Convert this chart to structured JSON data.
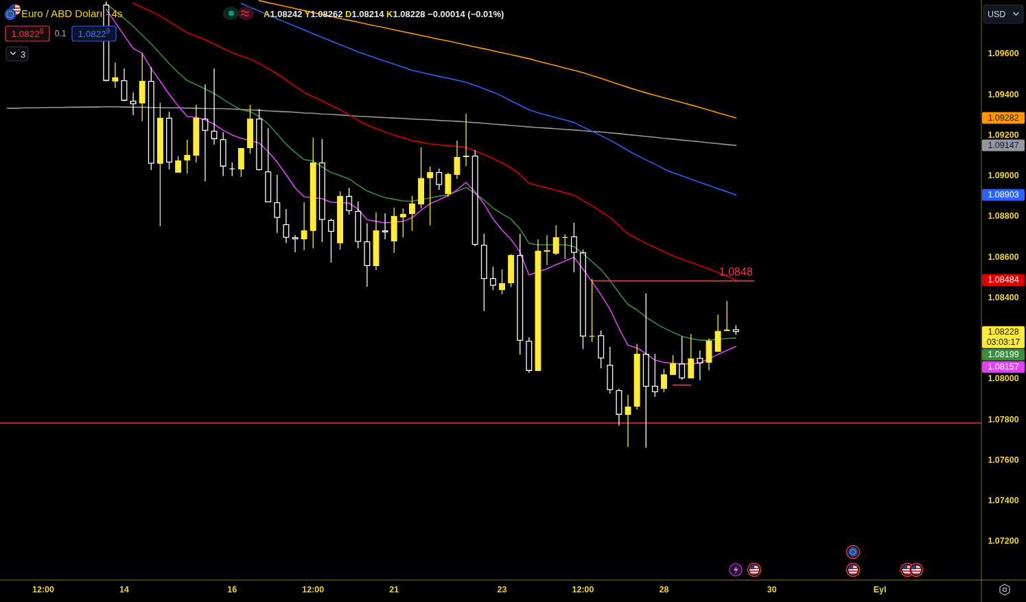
{
  "chart_data": {
    "type": "candlestick",
    "title": "Euro / ABD Doları · 4s",
    "subtitle": "A1.08242 Y1.08262 D1.08214 K1.08228 −0.00014 (−0.01%)",
    "categories": [
      null,
      null,
      null,
      null,
      "12:00",
      null,
      null,
      null,
      null,
      null,
      null,
      null,
      null,
      "14",
      null,
      null,
      null,
      null,
      null,
      null,
      null,
      null,
      null,
      null,
      null,
      "16",
      null,
      null,
      null,
      null,
      null,
      null,
      null,
      null,
      "12:00",
      null,
      null,
      null,
      null,
      null,
      null,
      null,
      null,
      "21",
      null,
      null,
      null,
      null,
      null,
      null,
      null,
      null,
      null,
      null,
      null,
      "23",
      null,
      null,
      null,
      null,
      null,
      null,
      null,
      null,
      "12:00",
      null,
      null,
      null,
      null,
      null,
      null,
      null,
      null,
      "28",
      null,
      null,
      null,
      null,
      null,
      null,
      null,
      null,
      null,
      null,
      null,
      "30",
      null,
      null,
      null,
      null,
      null,
      null,
      null,
      null,
      null,
      null,
      null,
      "Eyl"
    ],
    "ylim": [
      1.07007,
      1.09863
    ],
    "yticks": [
      {
        "value": 1.072,
        "label": "1.07200"
      },
      {
        "value": 1.074,
        "label": "1.07400"
      },
      {
        "value": 1.076,
        "label": "1.07600"
      },
      {
        "value": 1.078,
        "label": "1.07800"
      },
      {
        "value": 1.08,
        "label": "1.08000"
      },
      {
        "value": 1.084,
        "label": "1.08400"
      },
      {
        "value": 1.086,
        "label": "1.08600"
      },
      {
        "value": 1.088,
        "label": "1.08800"
      },
      {
        "value": 1.09,
        "label": "1.09000"
      },
      {
        "value": 1.092,
        "label": "1.09200"
      },
      {
        "value": 1.094,
        "label": "1.09400"
      },
      {
        "value": 1.096,
        "label": "1.09600"
      }
    ],
    "series": [
      {
        "type": "line",
        "color": "#ff9800",
        "values": [
          null,
          null,
          null,
          null,
          null,
          null,
          null,
          null,
          null,
          null,
          null,
          null,
          null,
          null,
          null,
          null,
          null,
          null,
          null,
          null,
          null,
          null,
          null,
          null,
          null,
          null,
          null,
          null,
          1.0986,
          1.0985,
          1.0984,
          1.09831,
          1.09821,
          1.09811,
          1.09801,
          1.09792,
          1.09782,
          1.09772,
          1.09763,
          1.09754,
          1.09744,
          1.09735,
          1.09726,
          1.09716,
          1.09707,
          1.09698,
          1.09688,
          1.09679,
          1.0967,
          1.09661,
          1.09651,
          1.09642,
          1.09632,
          1.09623,
          1.09613,
          1.09603,
          1.09594,
          1.09584,
          1.09574,
          1.09562,
          1.09551,
          1.0954,
          1.09528,
          1.09517,
          1.09505,
          1.09491,
          1.09477,
          1.09462,
          1.09448,
          1.09433,
          1.09419,
          1.09406,
          1.09394,
          1.09382,
          1.0937,
          1.09358,
          1.09346,
          1.09334,
          1.09321,
          1.09308,
          1.09295,
          1.09282,
          null,
          null,
          null,
          null,
          null,
          null,
          null,
          null,
          null,
          null,
          null,
          null,
          null,
          null,
          null,
          null
        ]
      },
      {
        "type": "line",
        "color": "#9598a1",
        "values": [
          1.0933,
          1.0933,
          1.09332,
          1.09332,
          1.09333,
          1.09334,
          1.09334,
          1.09335,
          1.09335,
          1.09336,
          1.09336,
          1.09337,
          1.09337,
          1.09336,
          1.09335,
          1.09335,
          1.09334,
          1.09333,
          1.09332,
          1.09332,
          1.09331,
          1.0933,
          1.09329,
          1.09328,
          1.09328,
          1.09326,
          1.09324,
          1.09322,
          1.0932,
          1.09317,
          1.09315,
          1.09313,
          1.0931,
          1.09307,
          1.09305,
          1.09302,
          1.093,
          1.09297,
          1.09294,
          1.09291,
          1.09289,
          1.09286,
          1.09284,
          1.09282,
          1.0928,
          1.09277,
          1.09275,
          1.09273,
          1.0927,
          1.09268,
          1.09266,
          1.09263,
          1.09259,
          1.09256,
          1.09252,
          1.09249,
          1.09245,
          1.09242,
          1.09238,
          1.09235,
          1.09232,
          1.09229,
          1.09226,
          1.09223,
          1.09219,
          1.09216,
          1.09213,
          1.09209,
          1.09205,
          1.092,
          1.09196,
          1.09191,
          1.09187,
          1.09182,
          1.09178,
          1.09173,
          1.09169,
          1.09165,
          1.0916,
          1.09156,
          1.09151,
          1.09147,
          null,
          null,
          null,
          null,
          null,
          null,
          null,
          null,
          null,
          null,
          null,
          null,
          null,
          null,
          null,
          null
        ]
      },
      {
        "type": "line",
        "color": "#2962ff",
        "values": [
          null,
          null,
          null,
          null,
          null,
          null,
          null,
          null,
          null,
          null,
          null,
          null,
          null,
          null,
          null,
          null,
          null,
          null,
          null,
          null,
          null,
          null,
          null,
          null,
          null,
          null,
          1.09846,
          1.09827,
          1.09809,
          1.0979,
          1.09771,
          1.09752,
          1.09734,
          1.09715,
          1.09697,
          1.09679,
          1.09661,
          1.09643,
          1.09626,
          1.09607,
          1.09592,
          1.09577,
          1.09562,
          1.09547,
          1.09532,
          1.09517,
          1.09507,
          1.09497,
          1.09487,
          1.09478,
          1.09468,
          1.09458,
          1.09443,
          1.09426,
          1.09409,
          1.0939,
          1.09367,
          1.09345,
          1.09323,
          1.09308,
          1.09296,
          1.09284,
          1.09272,
          1.0926,
          1.09238,
          1.09217,
          1.09195,
          1.09173,
          1.09148,
          1.09122,
          1.09098,
          1.09076,
          1.09054,
          1.09032,
          1.09012,
          1.08997,
          1.08981,
          1.08965,
          1.0895,
          1.08934,
          1.08919,
          1.08903,
          null,
          null,
          null,
          null,
          null,
          null,
          null,
          null,
          null,
          null,
          null,
          null,
          null,
          null,
          null,
          null
        ]
      },
      {
        "type": "line",
        "color": "#e00000",
        "values": [
          null,
          null,
          null,
          null,
          null,
          null,
          null,
          null,
          null,
          null,
          null,
          null,
          null,
          null,
          1.09848,
          1.09827,
          1.09806,
          1.09785,
          1.09757,
          1.09729,
          1.09702,
          1.09685,
          1.09669,
          1.09647,
          1.09624,
          1.09604,
          1.09588,
          1.09573,
          1.0955,
          1.09526,
          1.095,
          1.09469,
          1.09438,
          1.09408,
          1.09387,
          1.09366,
          1.09344,
          1.09323,
          1.09298,
          1.09272,
          1.09247,
          1.0923,
          1.09213,
          1.09198,
          1.09184,
          1.09171,
          1.09163,
          1.09155,
          1.0915,
          1.09146,
          1.09142,
          1.09137,
          1.0912,
          1.09102,
          1.09082,
          1.09062,
          1.09036,
          1.09003,
          1.08961,
          1.08949,
          1.08938,
          1.08926,
          1.08914,
          1.08902,
          1.08876,
          1.0885,
          1.08822,
          1.08793,
          1.08752,
          1.08712,
          1.08689,
          1.08665,
          1.08644,
          1.08624,
          1.08603,
          1.08587,
          1.08571,
          1.08555,
          1.08538,
          1.08521,
          1.08503,
          1.08484,
          null,
          null,
          null,
          null,
          null,
          null,
          null,
          null,
          null,
          null,
          null,
          null,
          null,
          null,
          null,
          null
        ]
      },
      {
        "color": "#ffeb3b",
        "ohlc": [
          null,
          null,
          null,
          null,
          null,
          null,
          null,
          null,
          null,
          null,
          null,
          [
            1.0984,
            1.09855,
            1.09462,
            1.09465
          ],
          [
            1.09462,
            1.09556,
            1.09431,
            1.09482
          ],
          [
            1.09468,
            1.09526,
            1.09364,
            1.09367
          ],
          [
            1.09367,
            1.09408,
            1.09296,
            1.0935
          ],
          [
            1.09354,
            1.09603,
            1.09266,
            1.09465
          ],
          [
            1.09465,
            1.09532,
            1.09026,
            1.09057
          ],
          [
            1.09057,
            1.09357,
            1.08749,
            1.09283
          ],
          [
            1.09283,
            1.09313,
            1.09029,
            1.09063
          ],
          [
            1.09013,
            1.09094,
            1.09013,
            1.09073
          ],
          [
            1.09073,
            1.09175,
            1.09009,
            1.091
          ],
          [
            1.09097,
            1.09347,
            1.09063,
            1.09283
          ],
          [
            1.09279,
            1.09448,
            1.08969,
            1.09219
          ],
          [
            1.09219,
            1.09526,
            1.09151,
            1.09178
          ],
          [
            1.09178,
            1.09212,
            1.08996,
            1.09043
          ],
          [
            1.09033,
            1.09063,
            1.08996,
            1.09029
          ],
          [
            1.09029,
            1.09134,
            1.08992,
            1.09134
          ],
          [
            1.09134,
            1.09347,
            1.09107,
            1.09279
          ],
          [
            1.09279,
            1.09327,
            1.09023,
            1.09026
          ],
          [
            1.09019,
            1.09232,
            1.08867,
            1.08867
          ],
          [
            1.08867,
            1.09002,
            1.08716,
            1.0879
          ],
          [
            1.08759,
            1.08834,
            1.08665,
            1.08692
          ],
          [
            1.08695,
            1.08705,
            1.08621,
            1.08685
          ],
          [
            1.08685,
            1.08867,
            1.08631,
            1.08729
          ],
          [
            1.08726,
            1.09185,
            1.08641,
            1.09063
          ],
          [
            1.09063,
            1.09178,
            1.08672,
            1.0878
          ],
          [
            1.0878,
            1.08786,
            1.0857,
            1.08722
          ],
          [
            1.08665,
            1.08921,
            1.08634,
            1.08898
          ],
          [
            1.08898,
            1.08938,
            1.08807,
            1.08824
          ],
          [
            1.08824,
            1.08871,
            1.08641,
            1.08672
          ],
          [
            1.08675,
            1.08763,
            1.08452,
            1.08553
          ],
          [
            1.08553,
            1.08817,
            1.08533,
            1.08729
          ],
          [
            1.08729,
            1.08813,
            1.08685,
            1.08719
          ],
          [
            1.08675,
            1.0884,
            1.08618,
            1.088
          ],
          [
            1.08793,
            1.08837,
            1.08695,
            1.0881
          ],
          [
            1.0881,
            1.08898,
            1.08726,
            1.08861
          ],
          [
            1.08857,
            1.09137,
            1.08837,
            1.08986
          ],
          [
            1.08986,
            1.09043,
            1.08753,
            1.09016
          ],
          [
            1.09016,
            1.09033,
            1.08928,
            1.08952
          ],
          [
            1.08908,
            1.09013,
            1.08894,
            1.09006
          ],
          [
            1.09002,
            1.09171,
            1.08982,
            1.0909
          ],
          [
            1.0909,
            1.09303,
            1.09046,
            1.09097
          ],
          [
            1.09097,
            1.09124,
            1.08651,
            1.08658
          ],
          [
            1.08658,
            1.08712,
            1.08331,
            1.08489
          ],
          [
            1.08493,
            1.0855,
            1.08435,
            1.08456
          ],
          [
            1.08435,
            1.08537,
            1.08415,
            1.08469
          ],
          [
            1.08469,
            1.08611,
            1.08449,
            1.08607
          ],
          [
            1.08607,
            1.08712,
            1.08118,
            1.08185
          ],
          [
            1.08185,
            1.08202,
            1.08027,
            1.08037
          ],
          [
            1.08037,
            1.08685,
            1.08037,
            1.08628
          ],
          [
            1.08624,
            1.08705,
            1.08557,
            1.08631
          ],
          [
            1.08614,
            1.08753,
            1.08607,
            1.08695
          ],
          [
            1.08692,
            1.08709,
            1.08587,
            1.08695
          ],
          [
            1.08699,
            1.08766,
            1.08523,
            1.08618
          ],
          [
            1.08621,
            1.08634,
            1.08145,
            1.08206
          ],
          [
            1.08206,
            1.08489,
            1.08179,
            1.08209
          ],
          [
            1.08212,
            1.08236,
            1.0805,
            1.08098
          ],
          [
            1.08067,
            1.08155,
            1.07925,
            1.07942
          ],
          [
            1.07942,
            1.07949,
            1.07767,
            1.07821
          ],
          [
            1.07821,
            1.07919,
            1.07662,
            1.07861
          ],
          [
            1.07861,
            1.08169,
            1.07848,
            1.08121
          ],
          [
            1.08121,
            1.08418,
            1.07659,
            1.07959
          ],
          [
            1.07963,
            1.08121,
            1.07909,
            1.07932
          ],
          [
            1.07949,
            1.08047,
            1.07932,
            1.0802
          ],
          [
            1.08017,
            1.08115,
            1.08017,
            1.08074
          ],
          [
            1.08074,
            1.08206,
            1.07993,
            1.08
          ],
          [
            1.08,
            1.08219,
            1.08,
            1.08098
          ],
          [
            1.08101,
            1.08138,
            1.0799,
            1.08074
          ],
          [
            1.08077,
            1.08196,
            1.0804,
            1.08185
          ],
          [
            1.08131,
            1.08314,
            1.08131,
            1.08233
          ],
          [
            1.08233,
            1.08381,
            1.08233,
            1.0824
          ],
          [
            1.08242,
            1.08262,
            1.08214,
            1.08228
          ],
          null,
          null,
          null,
          null,
          null,
          null,
          null,
          null,
          null,
          null,
          null,
          null,
          null,
          null,
          null,
          null
        ],
        "colors": [
          null,
          null,
          null,
          null,
          null,
          null,
          null,
          null,
          null,
          null,
          null,
          "#ffffff",
          "#ffeb3b",
          "#ffffff",
          "#ffffff",
          "#ffeb3b",
          "#ffffff",
          "#ffeb3b",
          "#ffffff",
          "#ffeb3b",
          "#ffeb3b",
          "#ffeb3b",
          "#ffffff",
          "#ffffff",
          "#ffffff",
          "#ffffff",
          "#ffeb3b",
          "#ffeb3b",
          "#ffffff",
          "#ffffff",
          "#ffffff",
          "#ffffff",
          "#ffffff",
          "#ffeb3b",
          "#ffeb3b",
          "#ffffff",
          "#ffffff",
          "#ffeb3b",
          "#ffffff",
          "#ffffff",
          "#ffffff",
          "#ffeb3b",
          "#ffffff",
          "#ffeb3b",
          "#ffeb3b",
          "#ffeb3b",
          "#ffeb3b",
          "#ffeb3b",
          "#ffffff",
          "#ffeb3b",
          "#ffeb3b",
          "#ffeb3b",
          "#ffffff",
          "#ffffff",
          "#ffffff",
          "#ffeb3b",
          "#ffeb3b",
          "#ffffff",
          "#ffffff",
          "#ffeb3b",
          "#ffeb3b",
          "#ffeb3b",
          "#ffeb3b",
          "#ffffff",
          "#ffffff",
          "#ffeb3b",
          "#ffffff",
          "#ffffff",
          "#ffffff",
          "#ffeb3b",
          "#ffeb3b",
          "#ffffff",
          "#ffffff",
          "#ffeb3b",
          "#ffeb3b",
          "#ffffff",
          "#ffeb3b",
          "#ffffff",
          "#ffeb3b",
          "#ffeb3b",
          "#ffeb3b",
          "#ffffff",
          null,
          null,
          null,
          null,
          null,
          null,
          null,
          null,
          null,
          null,
          null,
          null,
          null,
          null,
          null,
          null
        ]
      },
      {
        "type": "line",
        "color": "#388e3c",
        "values": [
          null,
          null,
          null,
          null,
          null,
          null,
          null,
          null,
          null,
          null,
          null,
          1.09843,
          1.09809,
          1.09772,
          1.09733,
          1.0969,
          1.09647,
          1.09599,
          1.0955,
          1.09506,
          1.09466,
          1.09446,
          1.09425,
          1.09403,
          1.09374,
          1.09347,
          1.09322,
          1.09314,
          1.0929,
          1.09252,
          1.09204,
          1.09153,
          1.09113,
          1.09077,
          1.0907,
          1.09041,
          1.09013,
          1.08999,
          1.08982,
          1.08951,
          1.08923,
          1.08906,
          1.0889,
          1.08882,
          1.08874,
          1.08872,
          null,
          1.08888,
          1.08897,
          1.08903,
          1.08921,
          1.0894,
          1.08911,
          1.08878,
          1.08839,
          1.0881,
          1.08784,
          1.08735,
          1.08665,
          1.08658,
          1.08658,
          1.08658,
          1.08658,
          1.08649,
          1.08614,
          1.08575,
          1.08536,
          1.08482,
          1.08421,
          1.08364,
          1.08337,
          1.08302,
          1.08273,
          1.08248,
          1.08227,
          1.08207,
          1.08196,
          1.08188,
          1.08188,
          1.08192,
          1.08196,
          1.08199,
          null,
          null,
          null,
          null,
          null,
          null,
          null,
          null,
          null,
          null,
          null,
          null,
          null,
          null,
          null,
          null
        ]
      },
      {
        "type": "line",
        "color": "#e040fb",
        "values": [
          null,
          null,
          null,
          null,
          null,
          null,
          null,
          null,
          null,
          null,
          null,
          1.09817,
          1.09753,
          1.09688,
          1.09625,
          1.096,
          1.09525,
          1.09463,
          1.09399,
          1.09341,
          1.0929,
          1.09285,
          1.09273,
          1.09251,
          1.09222,
          1.09198,
          1.09182,
          null,
          1.09159,
          1.09117,
          1.09065,
          1.09003,
          1.08938,
          1.08894,
          null,
          1.08885,
          1.08867,
          null,
          1.08863,
          1.08833,
          1.08781,
          1.08773,
          1.08766,
          null,
          1.08773,
          1.08791,
          1.08828,
          1.0886,
          1.08879,
          1.089,
          1.08928,
          1.08965,
          1.08918,
          1.08859,
          1.08785,
          1.0873,
          1.08684,
          1.08622,
          1.08509,
          null,
          1.0854,
          1.0856,
          1.08578,
          1.08596,
          1.08538,
          1.08476,
          1.08412,
          1.08341,
          1.08246,
          1.08163,
          1.0815,
          1.08122,
          1.0809,
          1.08079,
          null,
          1.0807,
          null,
          1.08075,
          null,
          1.08118,
          1.08138,
          1.08157,
          null,
          null,
          null,
          null,
          null,
          null,
          null,
          null,
          null,
          null,
          null,
          null,
          null,
          null,
          null,
          null
        ]
      },
      {
        "type": "line",
        "color": "#f23645",
        "values": [
          null,
          null,
          null,
          null,
          null,
          null,
          null,
          null,
          null,
          null,
          null,
          null,
          null,
          null,
          null,
          null,
          null,
          null,
          null,
          null,
          null,
          null,
          null,
          null,
          null,
          null,
          null,
          null,
          null,
          null,
          null,
          null,
          null,
          null,
          null,
          null,
          null,
          null,
          null,
          null,
          null,
          null,
          null,
          null,
          null,
          null,
          null,
          null,
          null,
          null,
          null,
          null,
          null,
          null,
          null,
          null,
          null,
          null,
          null,
          null,
          null,
          null,
          null,
          null,
          null,
          1.0848,
          1.0848,
          1.0848,
          1.0848,
          1.0848,
          1.0848,
          1.0848,
          1.0848,
          1.0848,
          1.0848,
          1.0848,
          1.0848,
          1.0848,
          1.0848,
          1.0848,
          1.0848,
          1.0848,
          1.0848,
          1.0848,
          null,
          null,
          null,
          null,
          null,
          null,
          null,
          null,
          null,
          null,
          null,
          null,
          null,
          null
        ],
        "value_labels": [
          null,
          null,
          null,
          null,
          null,
          null,
          null,
          null,
          null,
          null,
          null,
          null,
          null,
          null,
          null,
          null,
          null,
          null,
          null,
          null,
          null,
          null,
          null,
          null,
          null,
          null,
          null,
          null,
          null,
          null,
          null,
          null,
          null,
          null,
          null,
          null,
          null,
          null,
          null,
          null,
          null,
          null,
          null,
          null,
          null,
          null,
          null,
          null,
          null,
          null,
          null,
          null,
          null,
          null,
          null,
          null,
          null,
          null,
          null,
          null,
          null,
          null,
          null,
          null,
          null,
          null,
          null,
          null,
          null,
          null,
          null,
          null,
          null,
          null,
          null,
          null,
          null,
          null,
          null,
          null,
          null,
          "1.0848",
          null,
          null,
          null,
          null,
          null,
          null,
          null,
          null,
          null,
          null,
          null,
          null,
          null,
          null,
          null,
          null
        ]
      },
      {
        "type": "line",
        "color": "#f23645",
        "values": [
          null,
          null,
          null,
          null,
          null,
          null,
          null,
          null,
          null,
          null,
          null,
          null,
          null,
          null,
          null,
          null,
          null,
          null,
          null,
          null,
          null,
          null,
          null,
          null,
          null,
          null,
          null,
          null,
          null,
          null,
          null,
          null,
          null,
          null,
          null,
          null,
          null,
          null,
          null,
          null,
          null,
          null,
          null,
          null,
          null,
          null,
          null,
          null,
          null,
          null,
          null,
          null,
          null,
          null,
          null,
          null,
          null,
          null,
          null,
          null,
          null,
          null,
          null,
          null,
          null,
          null,
          null,
          null,
          null,
          null,
          null,
          null,
          null,
          null,
          1.07967,
          1.07967,
          1.07967,
          null,
          null,
          null,
          null,
          null,
          null,
          null,
          null,
          null,
          null,
          null,
          null,
          null,
          null,
          null,
          null,
          null,
          null,
          null,
          null,
          null
        ]
      }
    ],
    "ref_lines": [
      {
        "axis": "y",
        "value": 1.0778,
        "color": "#f23645"
      }
    ],
    "annotations": [
      "1.0822$^{8}$",
      "0.1",
      "1.0822$^{9}$",
      "3",
      "USD",
      "1.09282",
      "1.09147",
      "1.08903",
      "1.08484",
      "1.08228\n03:03:17",
      "1.08199",
      "1.08157"
    ]
  }
}
